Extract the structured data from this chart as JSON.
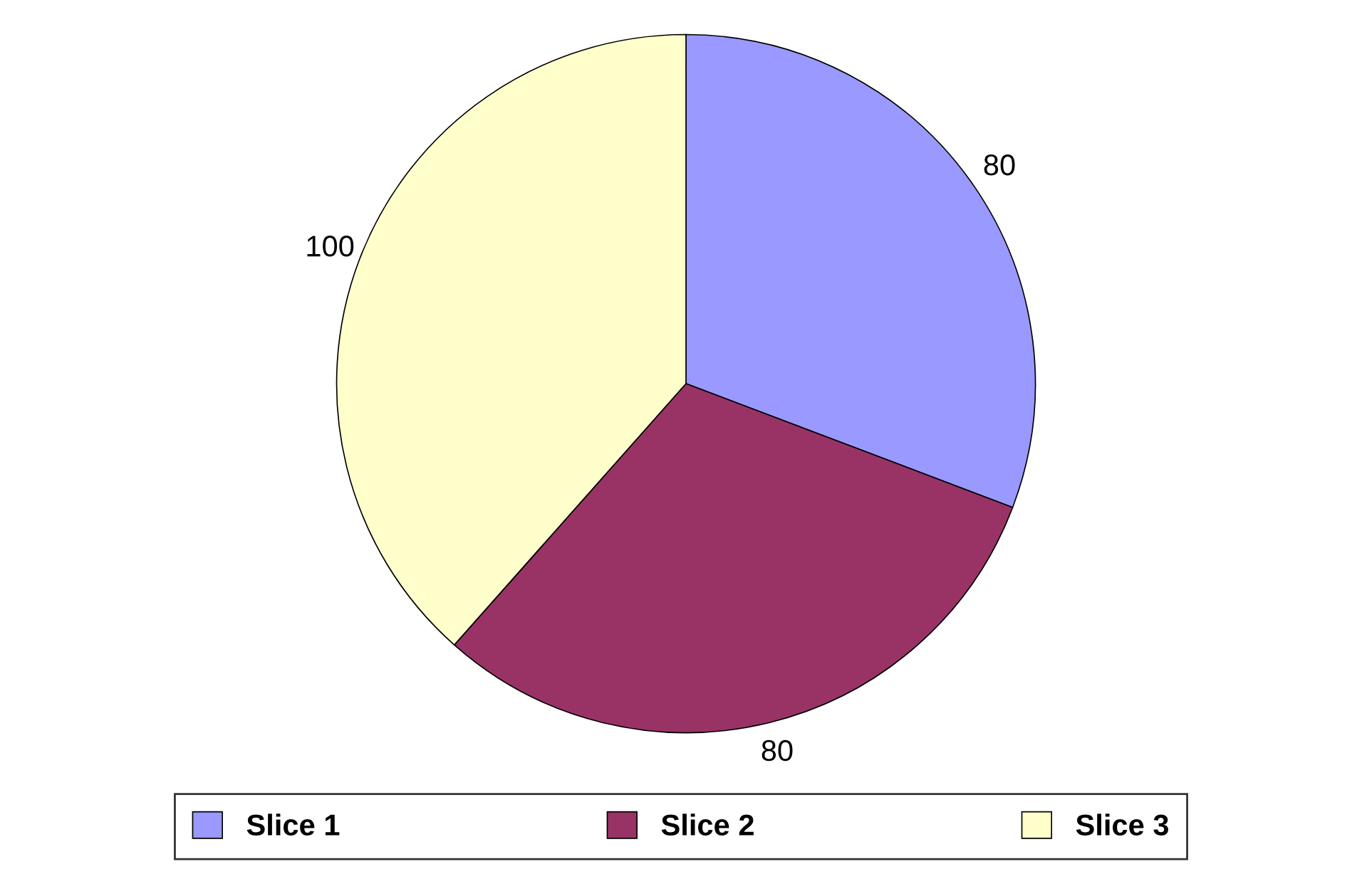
{
  "chart_data": {
    "type": "pie",
    "categories": [
      "Slice 1",
      "Slice 2",
      "Slice 3"
    ],
    "values": [
      80,
      80,
      100
    ],
    "colors": [
      "#9999ff",
      "#993366",
      "#ffffcc"
    ],
    "data_labels": true,
    "legend": "bottom"
  }
}
